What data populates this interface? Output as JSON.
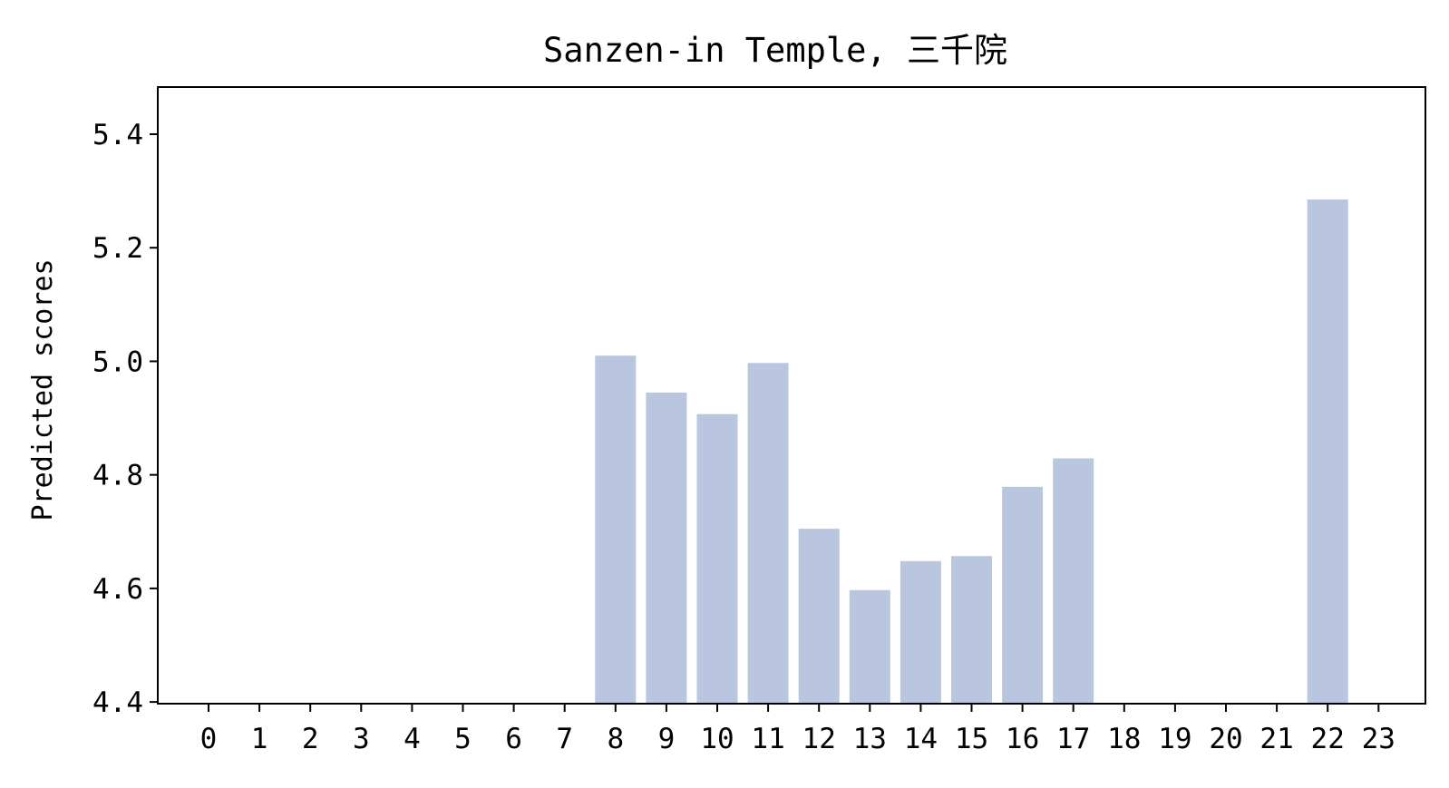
{
  "chart_data": {
    "type": "bar",
    "title": "Sanzen-in Temple, 三千院",
    "xlabel": "",
    "ylabel": "Predicted scores",
    "categories": [
      "0",
      "1",
      "2",
      "3",
      "4",
      "5",
      "6",
      "7",
      "8",
      "9",
      "10",
      "11",
      "12",
      "13",
      "14",
      "15",
      "16",
      "17",
      "18",
      "19",
      "20",
      "21",
      "22",
      "23"
    ],
    "values": [
      null,
      null,
      null,
      null,
      null,
      null,
      null,
      null,
      5.01,
      4.945,
      4.907,
      4.997,
      4.705,
      4.597,
      4.648,
      4.657,
      4.779,
      4.829,
      null,
      null,
      null,
      null,
      5.285,
      null
    ],
    "ylim": [
      4.397,
      5.483
    ],
    "yticks": [
      4.4,
      4.6,
      4.8,
      5.0,
      5.2,
      5.4
    ],
    "ytick_labels": [
      "4.4",
      "4.6",
      "4.8",
      "5.0",
      "5.2",
      "5.4"
    ],
    "bar_color": "#bac6e0",
    "grid": false,
    "legend": "none"
  }
}
